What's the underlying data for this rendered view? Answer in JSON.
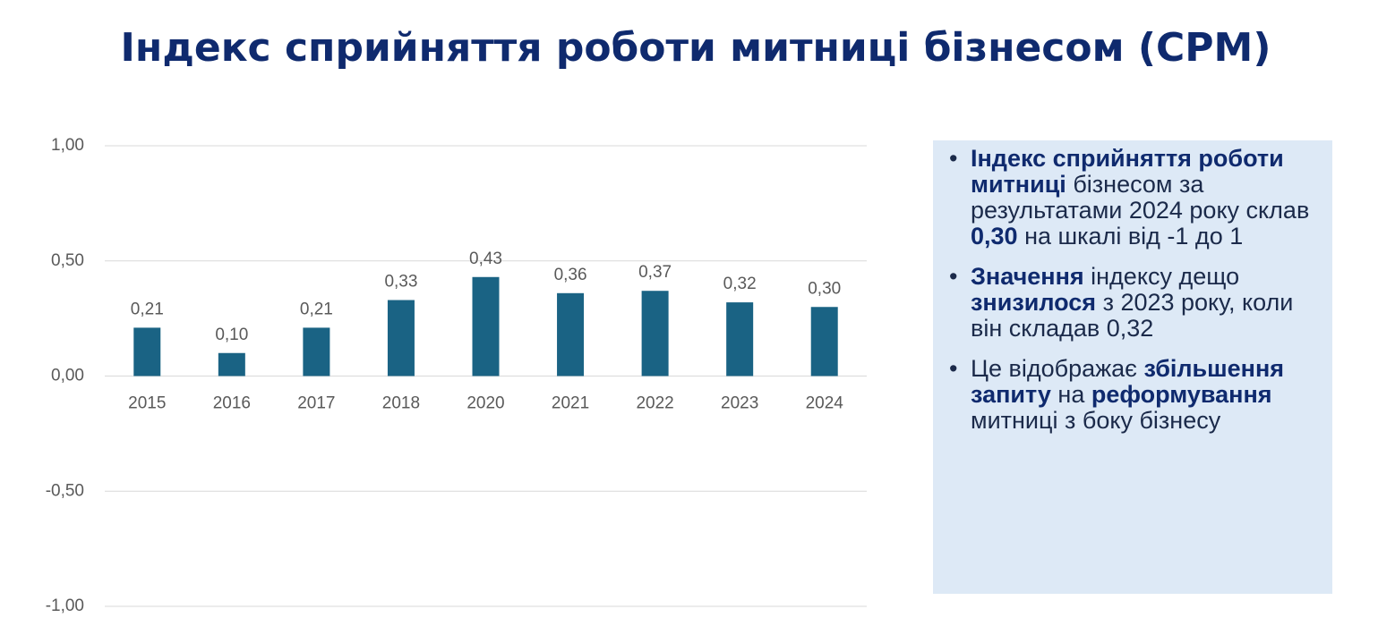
{
  "chart_data": {
    "type": "bar",
    "title": "Індекс сприйняття роботи митниці бізнесом (CPM)",
    "categories": [
      "2015",
      "2016",
      "2017",
      "2018",
      "2020",
      "2021",
      "2022",
      "2023",
      "2024"
    ],
    "values": [
      0.21,
      0.1,
      0.21,
      0.33,
      0.43,
      0.36,
      0.37,
      0.32,
      0.3
    ],
    "value_labels": [
      "0,21",
      "0,10",
      "0,21",
      "0,33",
      "0,43",
      "0,36",
      "0,37",
      "0,32",
      "0,30"
    ],
    "color": "#1a6384",
    "ylim": [
      -1,
      1
    ],
    "yticks": [
      {
        "value": 1,
        "label": "1,00"
      },
      {
        "value": 0.5,
        "label": "0,50"
      },
      {
        "value": 0,
        "label": "0,00"
      },
      {
        "value": -0.5,
        "label": "-0,50"
      },
      {
        "value": -1,
        "label": "-1,00"
      }
    ],
    "grid": true
  },
  "panel": {
    "bullets": [
      [
        {
          "text": "Індекс сприйняття роботи митниці",
          "bold": true
        },
        {
          "text": " бізнесом за результатами 2024 року склав ",
          "bold": false
        },
        {
          "text": "0,30",
          "bold": true
        },
        {
          "text": " на шкалі від -1 до 1",
          "bold": false
        }
      ],
      [
        {
          "text": "Значення",
          "bold": true
        },
        {
          "text": " індексу дещо ",
          "bold": false
        },
        {
          "text": "знизилося",
          "bold": true
        },
        {
          "text": " з 2023 року, коли він складав 0,32",
          "bold": false
        }
      ],
      [
        {
          "text": "Це відображає ",
          "bold": false
        },
        {
          "text": "збільшення запиту",
          "bold": true
        },
        {
          "text": " на ",
          "bold": false
        },
        {
          "text": "реформування",
          "bold": true
        },
        {
          "text": " митниці з боку бізнесу",
          "bold": false
        }
      ]
    ]
  }
}
